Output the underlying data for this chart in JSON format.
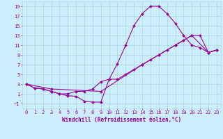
{
  "xlabel": "Windchill (Refroidissement éolien,°C)",
  "bg_color": "#cceeff",
  "line_color": "#990099",
  "grid_color": "#aadddd",
  "xlim": [
    -0.5,
    23.5
  ],
  "ylim": [
    -2,
    20
  ],
  "yticks": [
    -1,
    1,
    3,
    5,
    7,
    9,
    11,
    13,
    15,
    17,
    19
  ],
  "xticks": [
    0,
    1,
    2,
    3,
    4,
    5,
    6,
    7,
    8,
    9,
    10,
    11,
    12,
    13,
    14,
    15,
    16,
    17,
    18,
    19,
    20,
    21,
    22,
    23
  ],
  "line1_x": [
    0,
    1,
    2,
    3,
    4,
    5,
    6,
    7,
    8,
    9,
    10,
    11,
    12,
    13,
    14,
    15,
    16,
    17,
    18,
    19,
    20,
    21,
    22,
    23
  ],
  "line1_y": [
    3,
    2.2,
    2.0,
    1.5,
    1.0,
    0.6,
    0.5,
    -0.5,
    -0.7,
    -0.7,
    4.0,
    7.2,
    11.0,
    15.0,
    17.5,
    19.0,
    19.0,
    17.5,
    15.5,
    13.0,
    11.0,
    10.5,
    9.5,
    10.0
  ],
  "line2_x": [
    0,
    1,
    2,
    3,
    4,
    5,
    6,
    7,
    8,
    9,
    10,
    11,
    12,
    13,
    14,
    15,
    16,
    17,
    18,
    19,
    20,
    21,
    22,
    23
  ],
  "line2_y": [
    3,
    2.2,
    2.0,
    1.5,
    1.0,
    1.0,
    1.5,
    1.5,
    2.0,
    3.5,
    4.0,
    4.0,
    5.0,
    6.0,
    7.0,
    8.0,
    9.0,
    10.0,
    11.0,
    12.0,
    13.0,
    13.0,
    9.5,
    10.0
  ],
  "line3_x": [
    0,
    3,
    9,
    14,
    16,
    18,
    20,
    22,
    23
  ],
  "line3_y": [
    3,
    2.0,
    1.5,
    7.0,
    9.0,
    11.0,
    13.0,
    9.5,
    10.0
  ],
  "marker": "D",
  "markersize": 2.0,
  "linewidth": 0.8,
  "xlabel_fontsize": 5.5,
  "tick_fontsize": 5.0
}
